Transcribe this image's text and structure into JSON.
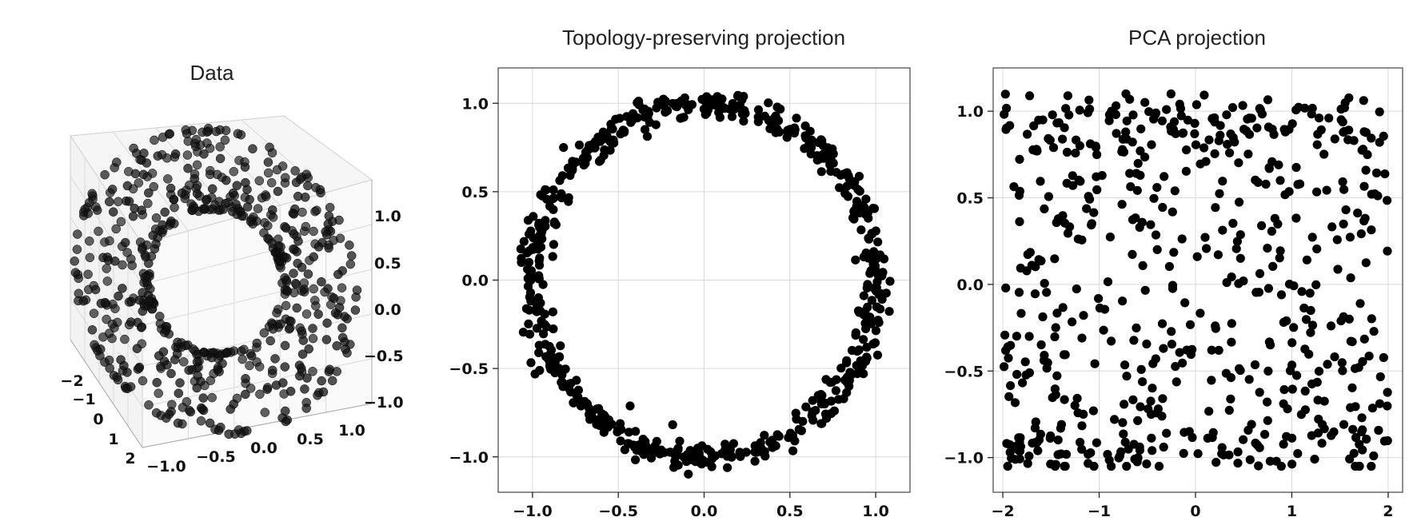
{
  "chart_data": [
    {
      "type": "scatter3d",
      "title": "Data",
      "description_of_content": "points sampled on a torus",
      "xlim": [
        -2,
        2
      ],
      "ylim": [
        -1.2,
        1.2
      ],
      "zlim": [
        -1.1,
        1.1
      ],
      "x_ticks": [
        "−2",
        "−1",
        "0",
        "1",
        "2"
      ],
      "y_ticks": [
        "−1.0",
        "−0.5",
        "0.0",
        "0.5",
        "1.0"
      ],
      "z_ticks": [
        "−1.0",
        "−0.5",
        "0.0",
        "0.5",
        "1.0"
      ],
      "n_points": 600,
      "grid": true,
      "point_color": "#000000"
    },
    {
      "type": "scatter",
      "title": "Topology-preserving projection",
      "xlim": [
        -1.2,
        1.2
      ],
      "ylim": [
        -1.2,
        1.2
      ],
      "x_ticks": [
        "−1.0",
        "−0.5",
        "0.0",
        "0.5",
        "1.0"
      ],
      "y_ticks": [
        "−1.0",
        "−0.5",
        "0.0",
        "0.5",
        "1.0"
      ],
      "x_tick_values": [
        -1.0,
        -0.5,
        0.0,
        0.5,
        1.0
      ],
      "y_tick_values": [
        -1.0,
        -0.5,
        0.0,
        0.5,
        1.0
      ],
      "shape": "ring",
      "ring_radius": 1.0,
      "ring_noise": 0.04,
      "n_points": 600,
      "grid": true,
      "point_color": "#000000"
    },
    {
      "type": "scatter",
      "title": "PCA projection",
      "xlim": [
        -2.1,
        2.15
      ],
      "ylim": [
        -1.2,
        1.25
      ],
      "x_ticks": [
        "−2",
        "−1",
        "0",
        "1",
        "2"
      ],
      "y_ticks": [
        "−1.0",
        "−0.5",
        "0.0",
        "0.5",
        "1.0"
      ],
      "x_tick_values": [
        -2,
        -1,
        0,
        1,
        2
      ],
      "y_tick_values": [
        -1.0,
        -0.5,
        0.0,
        0.5,
        1.0
      ],
      "shape": "uniform with dense bands near y = 1 and y = -1",
      "x_range": [
        -2,
        2
      ],
      "y_range": [
        -1.05,
        1.1
      ],
      "n_points": 600,
      "grid": true,
      "point_color": "#000000"
    }
  ]
}
